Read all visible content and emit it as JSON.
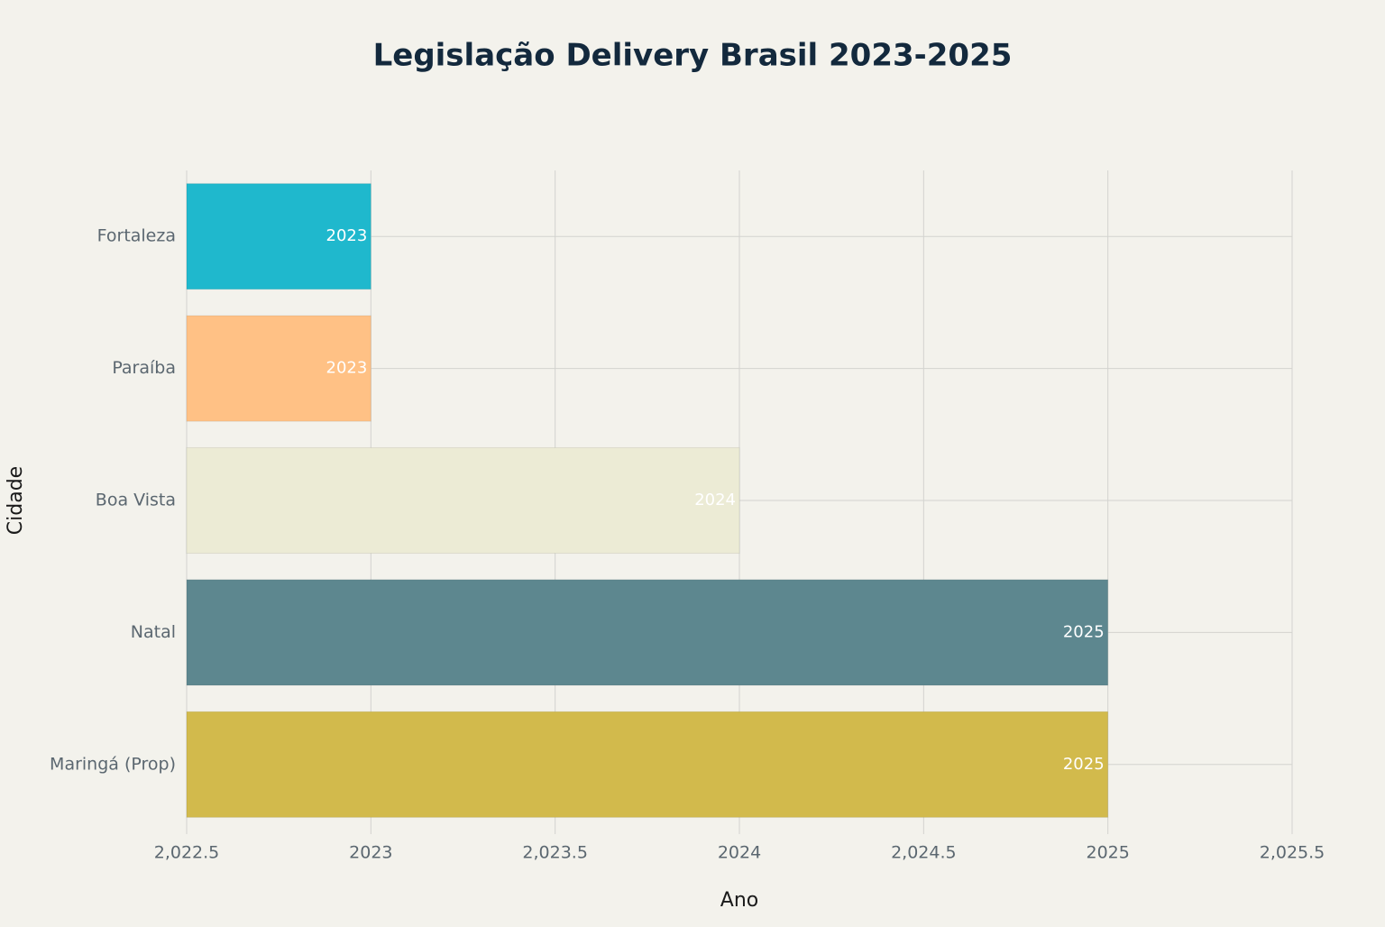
{
  "chart_data": {
    "type": "barh",
    "title": "Legislação Delivery Brasil 2023-2025",
    "x_label": "Ano",
    "y_label": "Cidade",
    "categories": [
      "Fortaleza",
      "Paraíba",
      "Boa Vista",
      "Natal",
      "Maringá (Prop)"
    ],
    "values": [
      2023,
      2023,
      2024,
      2025,
      2025
    ],
    "colors": [
      "#1fb8cd",
      "#ffc185",
      "#ecebd5",
      "#5d878f",
      "#d2ba4c"
    ],
    "xlim": [
      2022.5,
      2025.5
    ],
    "xticks": [
      {
        "value": 2022.5,
        "label": "2,022.5"
      },
      2023,
      {
        "value": 2023.5,
        "label": "2,023.5"
      },
      2024,
      {
        "value": 2024.5,
        "label": "2,024.5"
      },
      2025,
      {
        "value": 2025.5,
        "label": "2,025.5"
      }
    ],
    "grid": true,
    "show_value_labels": true
  }
}
